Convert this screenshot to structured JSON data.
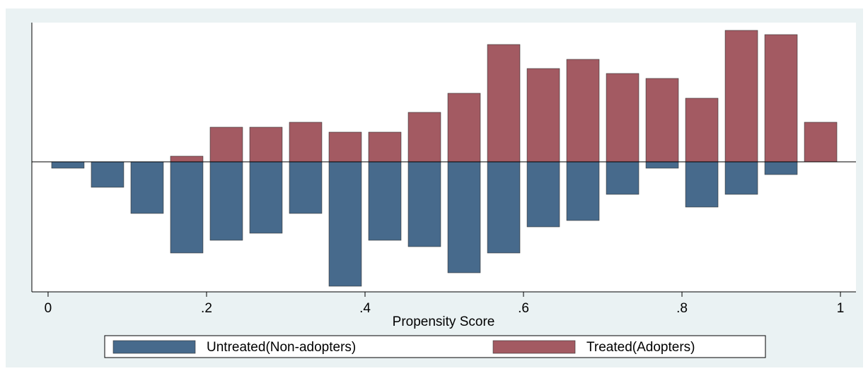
{
  "chart_data": {
    "type": "mirrored-histogram",
    "x_label": "Propensity Score",
    "bins": [
      0,
      0.05,
      0.1,
      0.15,
      0.2,
      0.25,
      0.3,
      0.35,
      0.4,
      0.45,
      0.5,
      0.55,
      0.6,
      0.65,
      0.7,
      0.75,
      0.8,
      0.85,
      0.9,
      0.95,
      1
    ],
    "series": [
      {
        "name": "Untreated(Non-adopters)",
        "color": "#476a8c",
        "values": [
          -9,
          -36,
          -73,
          -129,
          -111,
          -101,
          -73,
          -176,
          -111,
          -120,
          -157,
          -129,
          -92,
          -83,
          -46,
          -9,
          -64,
          -46,
          -18,
          0
        ]
      },
      {
        "name": "Treated(Adopters)",
        "color": "#a35a62",
        "values": [
          0,
          0,
          0,
          8,
          49,
          49,
          56,
          42,
          42,
          70,
          97,
          166,
          132,
          145,
          125,
          118,
          90,
          186,
          180,
          56
        ]
      }
    ],
    "xlim": [
      -0.0205,
      1.0196
    ],
    "ylim": [
      -184,
      197
    ],
    "xticks": [
      0,
      {
        "value": 0.2,
        "label": ".2"
      },
      {
        "value": 0.4,
        "label": ".4"
      },
      {
        "value": 0.6,
        "label": ".6"
      },
      {
        "value": 0.8,
        "label": ".8"
      },
      1
    ]
  }
}
